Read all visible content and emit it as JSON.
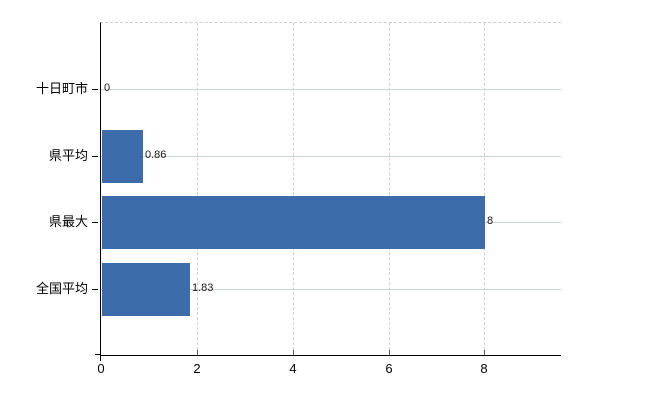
{
  "chart_data": {
    "type": "bar",
    "orientation": "horizontal",
    "title": "",
    "xlabel": "",
    "ylabel": "",
    "categories": [
      "十日町市",
      "県平均",
      "県最大",
      "全国平均"
    ],
    "values": [
      0,
      0.86,
      8,
      1.83
    ],
    "value_labels": [
      "0",
      "0.86",
      "8",
      "1.83"
    ],
    "x_ticks": [
      0,
      2,
      4,
      6,
      8
    ],
    "xlim": [
      0,
      9.6
    ],
    "grid": true,
    "bar_color": "#3d6cab",
    "h_gridline_color": "#ccd5cc",
    "v_gridline_color": "#d6ced6",
    "axis_color": "#000000",
    "legend": "none",
    "background_color": "#ffffff"
  }
}
